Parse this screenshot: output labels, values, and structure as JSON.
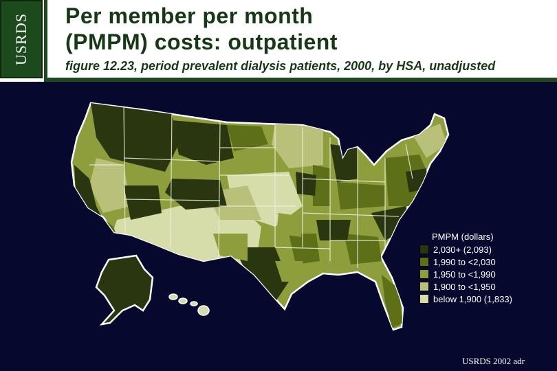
{
  "header": {
    "logo_text": "USRDS",
    "title_line1": "Per member per month",
    "title_line2": "(PMPM) costs: outpatient",
    "subtitle": "figure 12.23, period prevalent dialysis patients, 2000, by HSA, unadjusted"
  },
  "legend": {
    "title": "PMPM (dollars)",
    "items": [
      {
        "label": "2,030+ (2,093)",
        "color": "#2a3610"
      },
      {
        "label": "1,990 to <2,030",
        "color": "#5d7018"
      },
      {
        "label": "1,950 to <1,990",
        "color": "#8e9e3c"
      },
      {
        "label": "1,900 to <1,950",
        "color": "#b8c07a"
      },
      {
        "label": "below 1,900 (1,833)",
        "color": "#d6dcaa"
      }
    ]
  },
  "footer": "USRDS 2002 adr",
  "colors": {
    "background": "#06082e",
    "header_green": "#1c4a1c",
    "state_borders": "#f0f2e0"
  }
}
